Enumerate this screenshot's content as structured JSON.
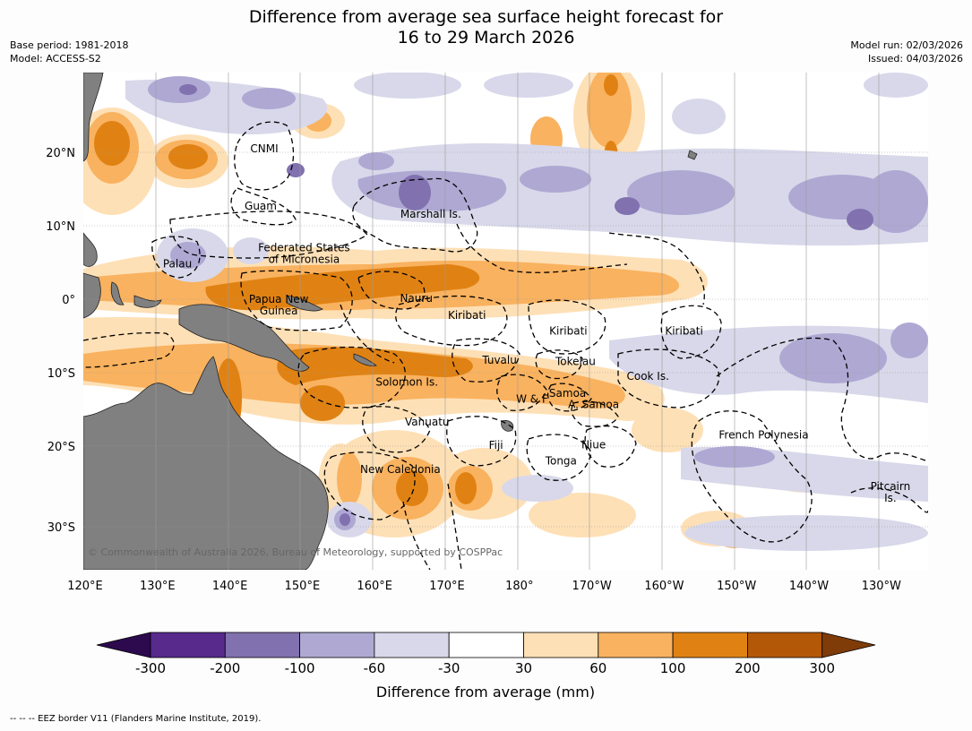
{
  "title_line1": "Difference from average sea surface height forecast for",
  "title_line2": "16 to 29 March 2026",
  "base_period": "Base period: 1981-2018",
  "model": "Model: ACCESS-S2",
  "model_run": "Model run: 02/03/2026",
  "issued": "Issued: 04/03/2026",
  "credit": "© Commonwealth of Australia 2026, Bureau of Meteorology, supported by COSPPac",
  "footnote": "--  --  -- EEZ border V11 (Flanders Marine Institute, 2019).",
  "lon_labels": [
    "120°E",
    "130°E",
    "140°E",
    "150°E",
    "160°E",
    "170°E",
    "180°",
    "170°W",
    "160°W",
    "150°W",
    "140°W",
    "130°W"
  ],
  "lat_labels": [
    "20°N",
    "10°N",
    "0°",
    "10°S",
    "20°S",
    "30°S"
  ],
  "regions": [
    {
      "name": "CNMI",
      "lon": 145,
      "lat": 20.5
    },
    {
      "name": "Guam",
      "lon": 144.5,
      "lat": 12.7
    },
    {
      "name": "Marshall Is.",
      "lon": 168,
      "lat": 11.6
    },
    {
      "name": "Federated States",
      "lon": 150.5,
      "lat": 7.0
    },
    {
      "name": "of Micronesia",
      "lon": 150.5,
      "lat": 5.4
    },
    {
      "name": "Palau",
      "lon": 133,
      "lat": 4.8
    },
    {
      "name": "Papua New",
      "lon": 147,
      "lat": 0
    },
    {
      "name": "Guinea",
      "lon": 147,
      "lat": -1.6
    },
    {
      "name": "Nauru",
      "lon": 166,
      "lat": 0.1
    },
    {
      "name": "Kiribati",
      "lon": 173,
      "lat": -2.2
    },
    {
      "name": "Kiribati",
      "lon": -173,
      "lat": -4.3
    },
    {
      "name": "Kiribati",
      "lon": -157,
      "lat": -4.3
    },
    {
      "name": "Tuvalu",
      "lon": 177.5,
      "lat": -8.3
    },
    {
      "name": "Tokelau",
      "lon": -172,
      "lat": -8.5
    },
    {
      "name": "Cook Is.",
      "lon": -162,
      "lat": -10.5
    },
    {
      "name": "Solomon Is.",
      "lon": 164.7,
      "lat": -11.3
    },
    {
      "name": "Samoa",
      "lon": -173.1,
      "lat": -12.8
    },
    {
      "name": "W & F",
      "lon": -178,
      "lat": -13.6
    },
    {
      "name": "A. Samoa",
      "lon": -169.5,
      "lat": -14.3
    },
    {
      "name": "Vanuatu",
      "lon": 167.5,
      "lat": -16.7
    },
    {
      "name": "Fiji",
      "lon": 177,
      "lat": -19.9
    },
    {
      "name": "Niue",
      "lon": -169.5,
      "lat": -19.8
    },
    {
      "name": "French Polynesia",
      "lon": -146,
      "lat": -18.5
    },
    {
      "name": "Tonga",
      "lon": -174,
      "lat": -22
    },
    {
      "name": "New Caledonia",
      "lon": 163.8,
      "lat": -23.2
    },
    {
      "name": "Pitcairn",
      "lon": -128.5,
      "lat": -25.5
    },
    {
      "name": "Is.",
      "lon": -128.5,
      "lat": -27.1
    }
  ],
  "colorbar": {
    "title": "Difference from average (mm)",
    "tick_labels": [
      "-300",
      "-200",
      "-100",
      "-60",
      "-30",
      "30",
      "60",
      "100",
      "200",
      "300"
    ],
    "colors": [
      "#2d0a4e",
      "#582a8c",
      "#8171af",
      "#aea8d3",
      "#d8d8ea",
      "#ffffff",
      "#fee0b6",
      "#f9b25f",
      "#e08213",
      "#b35806",
      "#7f3b08"
    ],
    "land_color": "#808080"
  }
}
